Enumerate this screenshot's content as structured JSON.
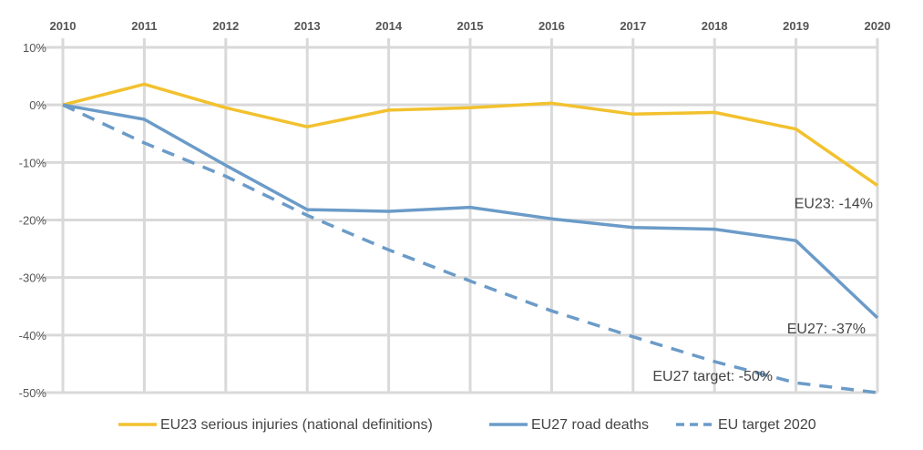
{
  "chart_data": {
    "type": "line",
    "title": "",
    "xlabel": "",
    "ylabel": "",
    "x": [
      "2010",
      "2011",
      "2012",
      "2013",
      "2014",
      "2015",
      "2016",
      "2017",
      "2018",
      "2019",
      "2020"
    ],
    "ylim": [
      -50,
      10
    ],
    "y_ticks": [
      10,
      0,
      -10,
      -20,
      -30,
      -40,
      -50
    ],
    "y_tick_labels": [
      "10%",
      "0%",
      "-10%",
      "-20%",
      "-30%",
      "-40%",
      "-50%"
    ],
    "grid": true,
    "legend_position": "bottom",
    "series": [
      {
        "name": "EU23 serious injuries (national definitions)",
        "color": "#F2C12E",
        "style": "solid",
        "values": [
          0,
          3.6,
          -0.5,
          -3.8,
          -0.9,
          -0.5,
          0.3,
          -1.6,
          -1.3,
          -4.2,
          -14
        ]
      },
      {
        "name": "EU27 road deaths",
        "color": "#6B9BC8",
        "style": "solid",
        "values": [
          0,
          -2.5,
          -10.5,
          -18.2,
          -18.5,
          -17.8,
          -19.8,
          -21.3,
          -21.6,
          -23.6,
          -37
        ]
      },
      {
        "name": "EU target 2020",
        "color": "#6B9BC8",
        "style": "dashed",
        "values": [
          0,
          -6.6,
          -12.4,
          -19.2,
          -25.2,
          -30.6,
          -35.8,
          -40.3,
          -44.6,
          -48.3,
          -50
        ]
      }
    ],
    "annotations": [
      {
        "text": "EU23: -14%",
        "x": "2020",
        "y": -14
      },
      {
        "text": "EU27: -37%",
        "x": "2020",
        "y": -37
      },
      {
        "text": "EU27 target: -50%",
        "x": "2020",
        "y": -50
      }
    ]
  }
}
